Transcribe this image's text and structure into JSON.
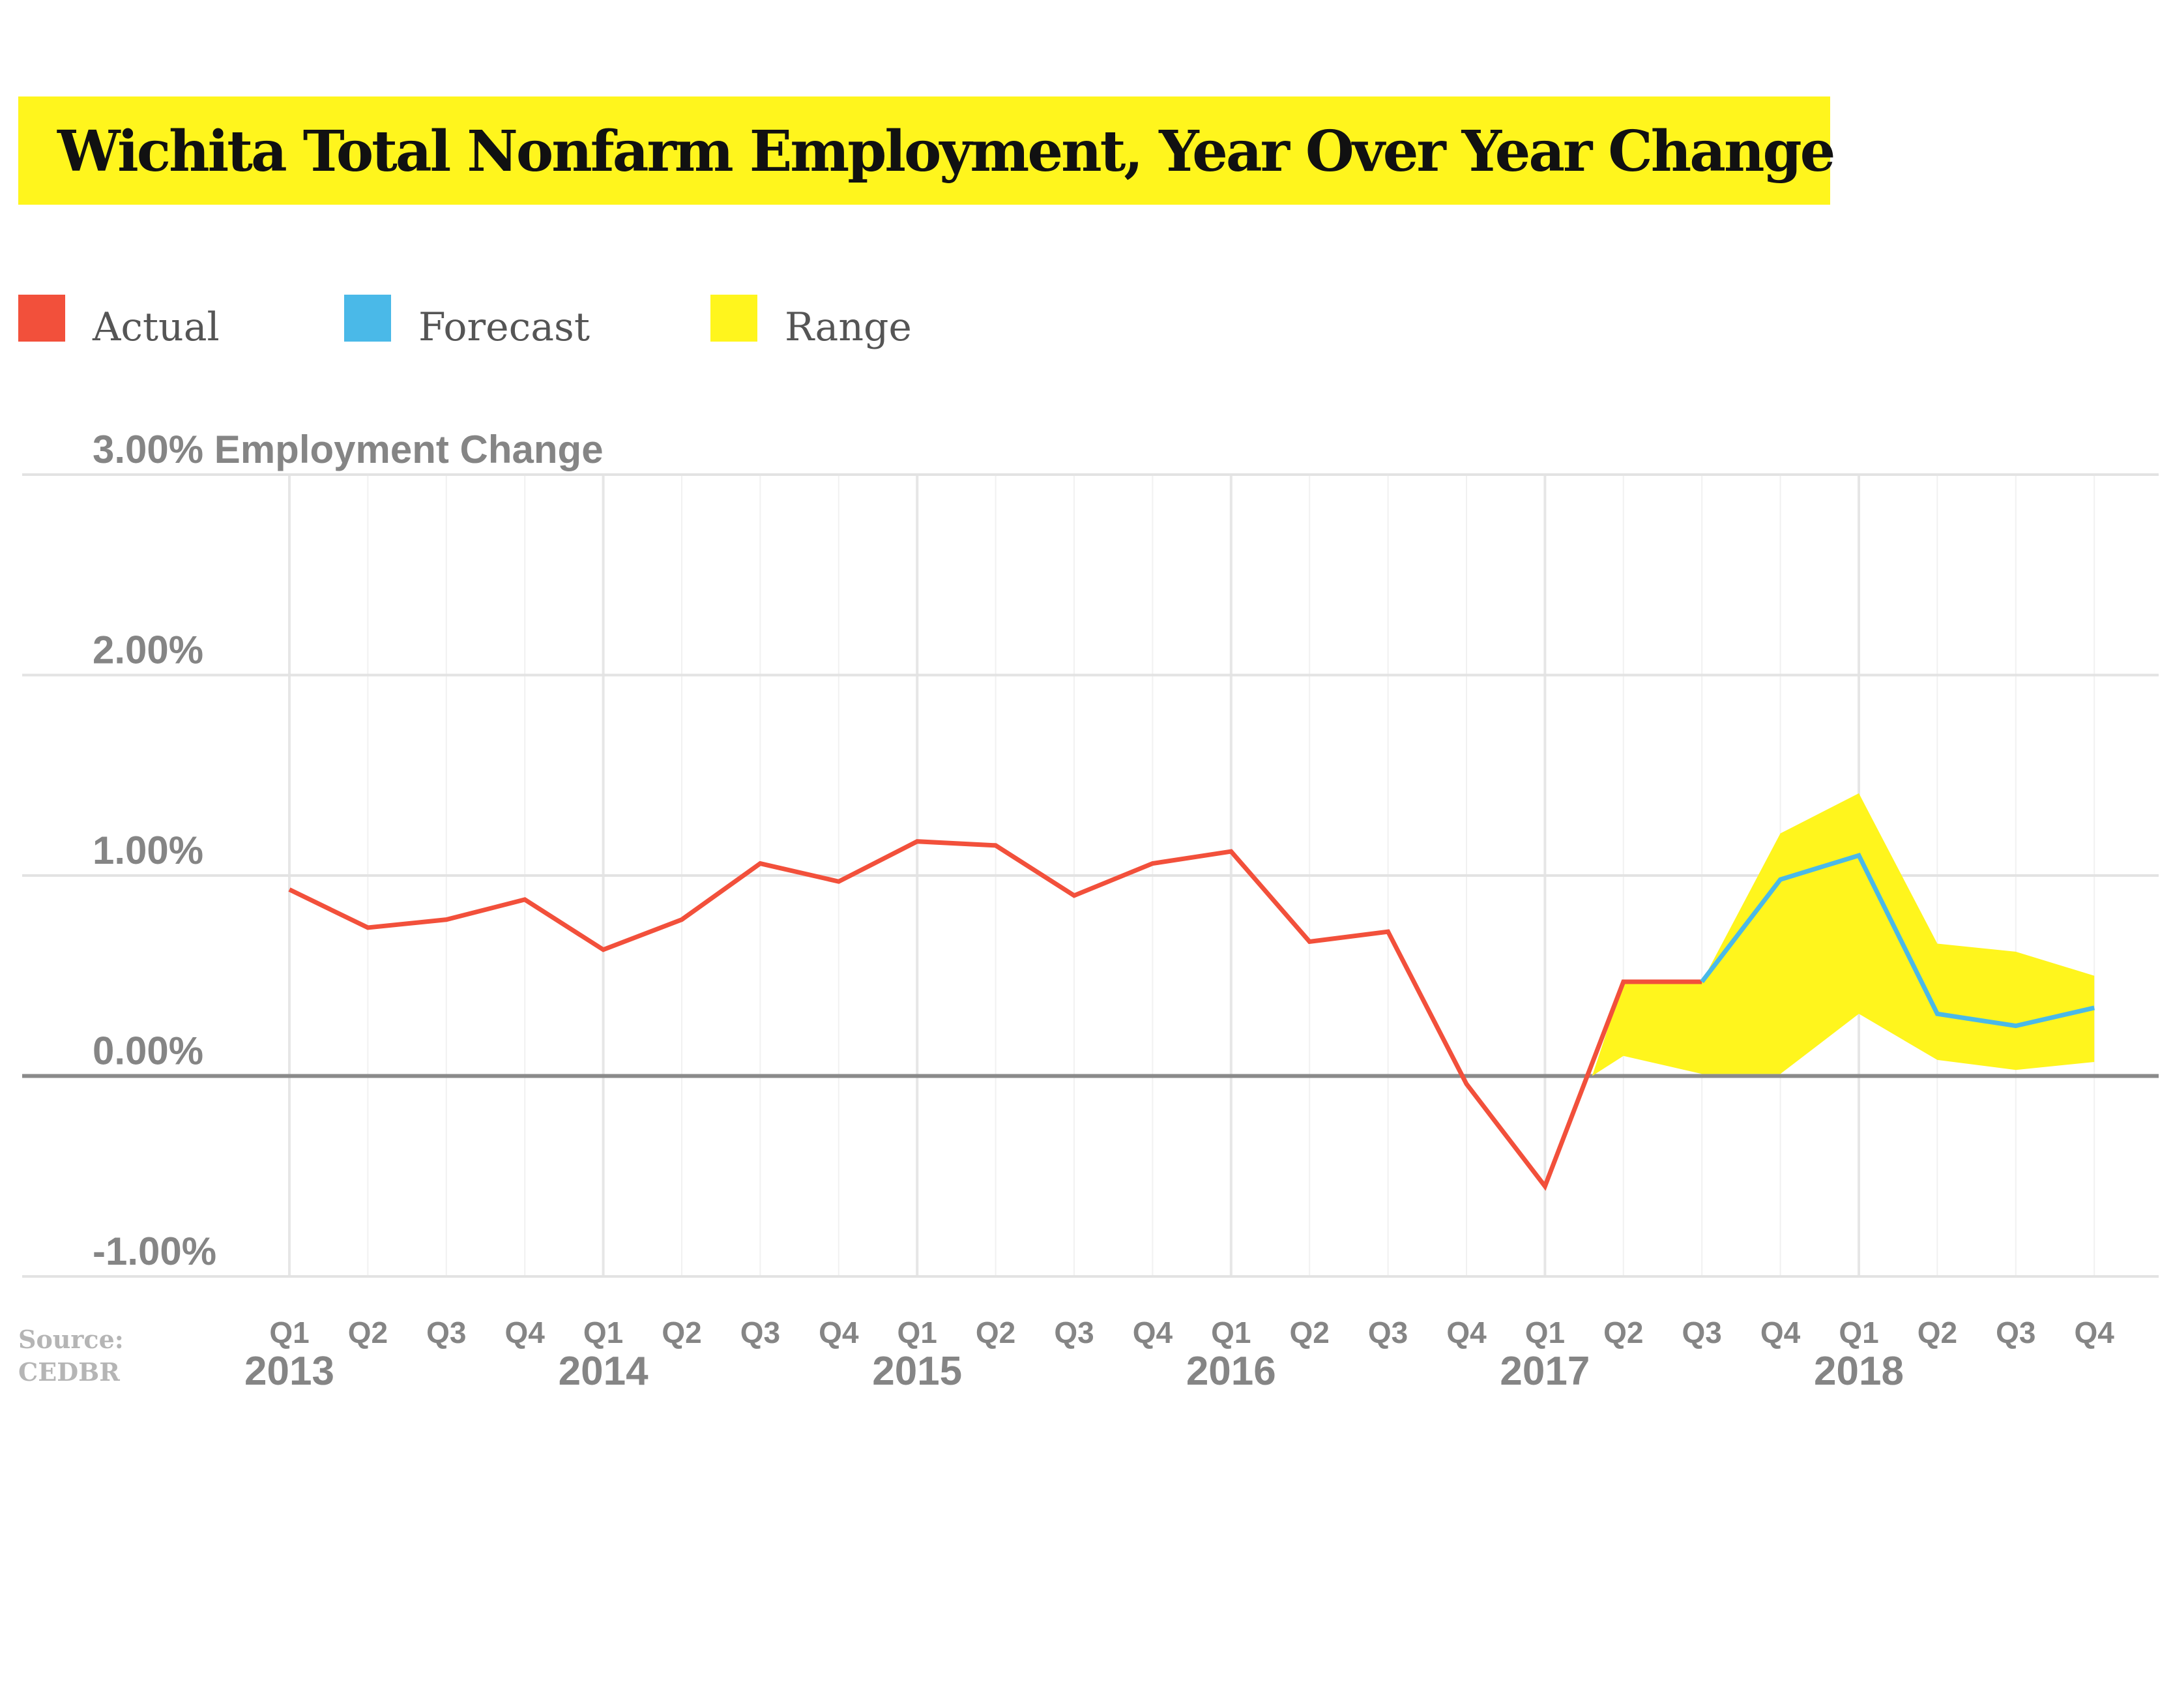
{
  "chart_data": {
    "type": "line",
    "title": "Wichita Total Nonfarm Employment, Year Over Year Change",
    "ylabel": "Employment Change",
    "ylim": [
      -1.0,
      3.0
    ],
    "y_ticks": [
      {
        "value": 3.0,
        "label": "3.00%"
      },
      {
        "value": 2.0,
        "label": "2.00%"
      },
      {
        "value": 1.0,
        "label": "1.00%"
      },
      {
        "value": 0.0,
        "label": "0.00%"
      },
      {
        "value": -1.0,
        "label": "-1.00%"
      }
    ],
    "quarters": [
      "Q1",
      "Q2",
      "Q3",
      "Q4",
      "Q1",
      "Q2",
      "Q3",
      "Q4",
      "Q1",
      "Q2",
      "Q3",
      "Q4",
      "Q1",
      "Q2",
      "Q3",
      "Q4",
      "Q1",
      "Q2",
      "Q3",
      "Q4",
      "Q1",
      "Q2",
      "Q3",
      "Q4"
    ],
    "years": [
      "2013",
      "2014",
      "2015",
      "2016",
      "2017",
      "2018"
    ],
    "legend_position": "top-left",
    "grid": true,
    "series": [
      {
        "name": "Actual",
        "color": "#f2503b",
        "values": [
          0.93,
          0.74,
          0.78,
          0.88,
          0.63,
          0.78,
          1.06,
          0.97,
          1.17,
          1.15,
          0.9,
          1.06,
          1.12,
          0.67,
          0.72,
          -0.04,
          -0.55,
          0.47,
          0.47,
          null,
          null,
          null,
          null,
          null
        ]
      },
      {
        "name": "Forecast",
        "color": "#4ab9e8",
        "values": [
          null,
          null,
          null,
          null,
          null,
          null,
          null,
          null,
          null,
          null,
          null,
          null,
          null,
          null,
          null,
          null,
          null,
          null,
          0.47,
          0.98,
          1.1,
          0.31,
          0.25,
          0.34
        ]
      },
      {
        "name": "Range",
        "color": "#fff51d",
        "lower": [
          null,
          null,
          null,
          null,
          null,
          null,
          null,
          null,
          null,
          null,
          null,
          null,
          null,
          null,
          null,
          null,
          null,
          0.1,
          0.01,
          0.01,
          0.31,
          0.08,
          0.03,
          0.07
        ],
        "upper": [
          null,
          null,
          null,
          null,
          null,
          null,
          null,
          null,
          null,
          null,
          null,
          null,
          null,
          null,
          null,
          null,
          null,
          0.47,
          0.47,
          1.21,
          1.41,
          0.66,
          0.62,
          0.5
        ]
      }
    ]
  },
  "legend": [
    {
      "label": "Actual",
      "color": "#f2503b"
    },
    {
      "label": "Forecast",
      "color": "#4ab9e8"
    },
    {
      "label": "Range",
      "color": "#fff51d"
    }
  ],
  "source": {
    "line1": "Source:",
    "line2": "CEDBR"
  }
}
